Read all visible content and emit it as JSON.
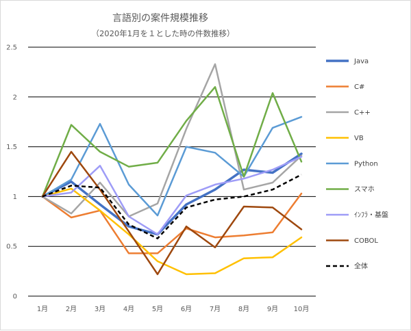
{
  "chart_data": {
    "type": "line",
    "title": "言語別の案件規模推移",
    "subtitle": "（2020年1月を１とした時の件数推移）",
    "categories": [
      "1月",
      "2月",
      "3月",
      "4月",
      "5月",
      "6月",
      "7月",
      "8月",
      "9月",
      "10月"
    ],
    "ylim": [
      0,
      2.5
    ],
    "yticks": [
      "0",
      "0.5",
      "1",
      "1.5",
      "2",
      "2.5"
    ],
    "grid": true,
    "legend_position": "right",
    "series": [
      {
        "name": "Java",
        "color": "#4472c4",
        "width": 3.5,
        "dashed": false,
        "values": [
          1.0,
          1.15,
          0.92,
          0.7,
          0.62,
          0.92,
          1.07,
          1.27,
          1.24,
          1.43
        ]
      },
      {
        "name": "C#",
        "color": "#ed7d31",
        "width": 2.5,
        "dashed": false,
        "values": [
          1.0,
          0.79,
          0.86,
          0.43,
          0.43,
          0.68,
          0.59,
          0.61,
          0.64,
          1.03
        ]
      },
      {
        "name": "C++",
        "color": "#a5a5a5",
        "width": 2.5,
        "dashed": false,
        "values": [
          1.0,
          0.83,
          1.14,
          0.8,
          0.93,
          1.68,
          2.33,
          1.07,
          1.14,
          1.41
        ]
      },
      {
        "name": "VB",
        "color": "#ffc000",
        "width": 2.5,
        "dashed": false,
        "values": [
          1.0,
          1.08,
          0.86,
          0.62,
          0.35,
          0.22,
          0.23,
          0.38,
          0.39,
          0.59
        ]
      },
      {
        "name": "Python",
        "color": "#5b9bd5",
        "width": 2.5,
        "dashed": false,
        "values": [
          1.0,
          1.17,
          1.73,
          1.12,
          0.81,
          1.5,
          1.44,
          1.2,
          1.69,
          1.8
        ]
      },
      {
        "name": "スマホ",
        "color": "#70ad47",
        "width": 2.5,
        "dashed": false,
        "values": [
          1.0,
          1.72,
          1.45,
          1.3,
          1.34,
          1.76,
          2.1,
          1.2,
          2.04,
          1.35
        ]
      },
      {
        "name": "ｲﾝﾌﾗ・基盤",
        "color": "#9e9cf7",
        "width": 2.5,
        "dashed": false,
        "values": [
          1.0,
          1.04,
          1.31,
          0.8,
          0.62,
          1.01,
          1.12,
          1.18,
          1.27,
          1.4
        ]
      },
      {
        "name": "COBOL",
        "color": "#9e480e",
        "width": 2.5,
        "dashed": false,
        "values": [
          1.0,
          1.45,
          1.07,
          0.65,
          0.22,
          0.7,
          0.49,
          0.9,
          0.89,
          0.67
        ]
      },
      {
        "name": "全体",
        "color": "#000000",
        "width": 2.5,
        "dashed": true,
        "values": [
          1.0,
          1.11,
          1.09,
          0.72,
          0.58,
          0.89,
          0.97,
          1.0,
          1.07,
          1.22
        ]
      }
    ]
  }
}
